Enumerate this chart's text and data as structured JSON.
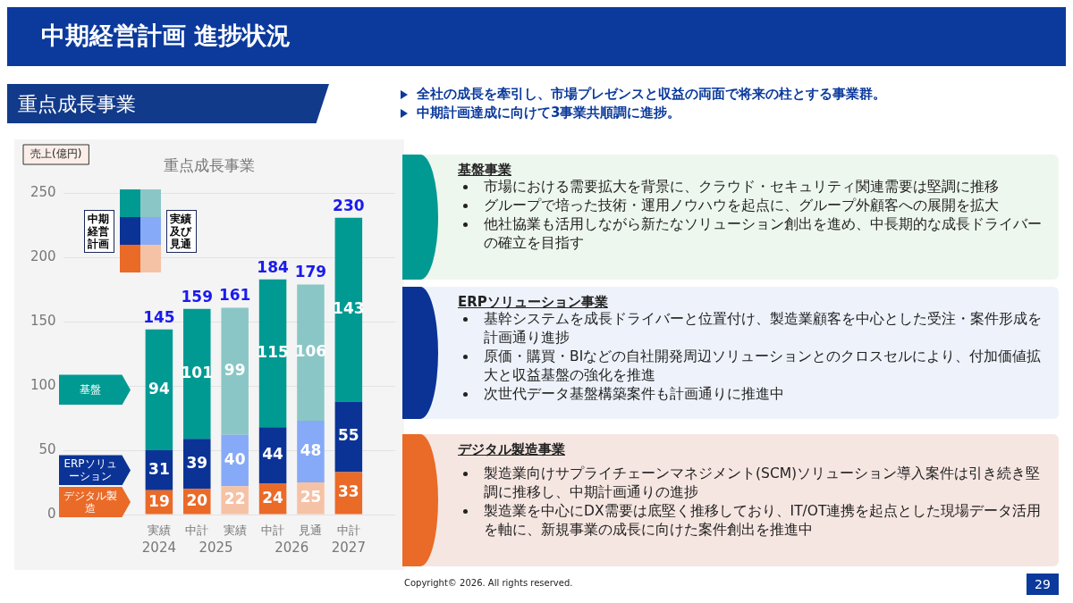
{
  "chart_data": {
    "type": "bar",
    "title": "重点成長事業",
    "ylabel": "売上(億円)",
    "categories": [
      "実績",
      "中計",
      "実績",
      "中計",
      "見通",
      "中計"
    ],
    "stacked": true,
    "data_labels": true,
    "series": [
      {
        "name": "デジタル製造",
        "color": "#ea6a28",
        "colors": [
          "#ea6a28",
          "#ea6a28",
          "#f6c2a5",
          "#ea6a28",
          "#f6c2a5",
          "#ea6a28"
        ],
        "values": [
          19,
          20,
          22,
          24,
          25,
          33
        ]
      },
      {
        "name": "ERPソリューション",
        "color": "#0b3396",
        "colors": [
          "#0b3396",
          "#0b3396",
          "#86aaf7",
          "#0b3396",
          "#86aaf7",
          "#0b3396"
        ],
        "values": [
          31,
          39,
          40,
          44,
          48,
          55
        ]
      },
      {
        "name": "基盤",
        "color": "#009a93",
        "colors": [
          "#009a93",
          "#009a93",
          "#8ac6c6",
          "#009a93",
          "#8ac6c6",
          "#009a93"
        ],
        "values": [
          94,
          101,
          99,
          115,
          106,
          143
        ]
      }
    ],
    "totals": [
      "145",
      "159",
      "161",
      "184",
      "179",
      "230"
    ],
    "ylim": [
      0,
      250
    ],
    "yticks": [
      0,
      50,
      100,
      150,
      200,
      250
    ],
    "grid": "y",
    "annotations": [
      "中期経営計画 進捗状況",
      "重点成長事業",
      "全社の成長を牽引し、市場プレゼンスと収益の両面で将来の柱とする事業群。",
      "中期計画達成に向けて3事業共順調に進捗。",
      "中期経営計画",
      "実績及び見通",
      "基盤事業",
      "市場における需要拡大を背景に、クラウド・セキュリティ関連需要は堅調に推移",
      "グループで培った技術・運用ノウハウを起点に、グループ外顧客への展開を拡大",
      "他社協業も活用しながら新たなソリューション創出を進め、中長期的な成長ドライバーの確立を目指す",
      "ERPソリューション事業",
      "基幹システムを成長ドライバーと位置付け、製造業顧客を中心とした受注・案件形成を計画通り進捗",
      "原価・購買・BIなどの自社開発周辺ソリューションとのクロスセルにより、付加価値拡大と収益基盤の強化を推進",
      "次世代データ基盤構築案件も計画通りに推進中",
      "デジタル製造事業",
      "製造業向けサプライチェーンマネジメント(SCM)ソリューション導入案件は引き続き堅調に推移し、中期計画通りの進捗",
      "製造業を中心にDX需要は底堅く推移しており、IT/OT連携を起点とした現場データ活用を軸に、新規事業の成長に向けた案件創出を推進中",
      "Copyright© 2026. All rights reserved.",
      "29",
      "2024",
      "2025",
      "2026",
      "2027"
    ]
  }
}
